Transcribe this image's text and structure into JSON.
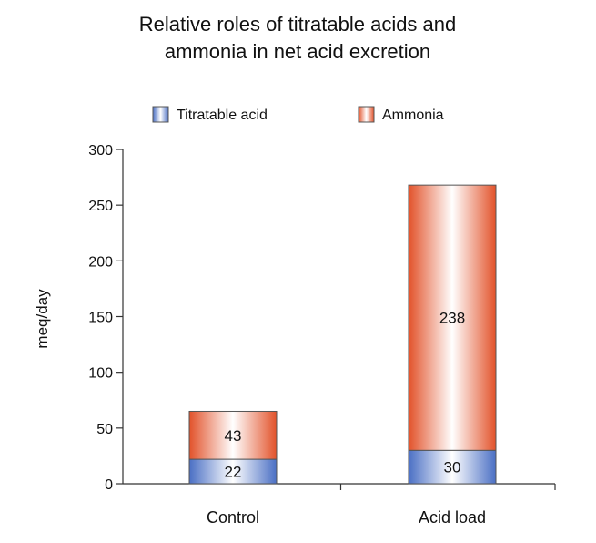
{
  "chart_data": {
    "type": "bar",
    "stacked": true,
    "title_lines": [
      "Relative roles of titratable acids and",
      "ammonia in net acid excretion"
    ],
    "xlabel": "",
    "ylabel": "meq/day",
    "ylim": [
      0,
      300
    ],
    "yticks": [
      0,
      50,
      100,
      150,
      200,
      250,
      300
    ],
    "categories": [
      "Control",
      "Acid load"
    ],
    "series": [
      {
        "name": "Titratable acid",
        "values": [
          22,
          30
        ],
        "color": "#4a6fc4"
      },
      {
        "name": "Ammonia",
        "values": [
          43,
          238
        ],
        "color": "#e2522a"
      }
    ],
    "legend_position": "top",
    "grid": false
  }
}
